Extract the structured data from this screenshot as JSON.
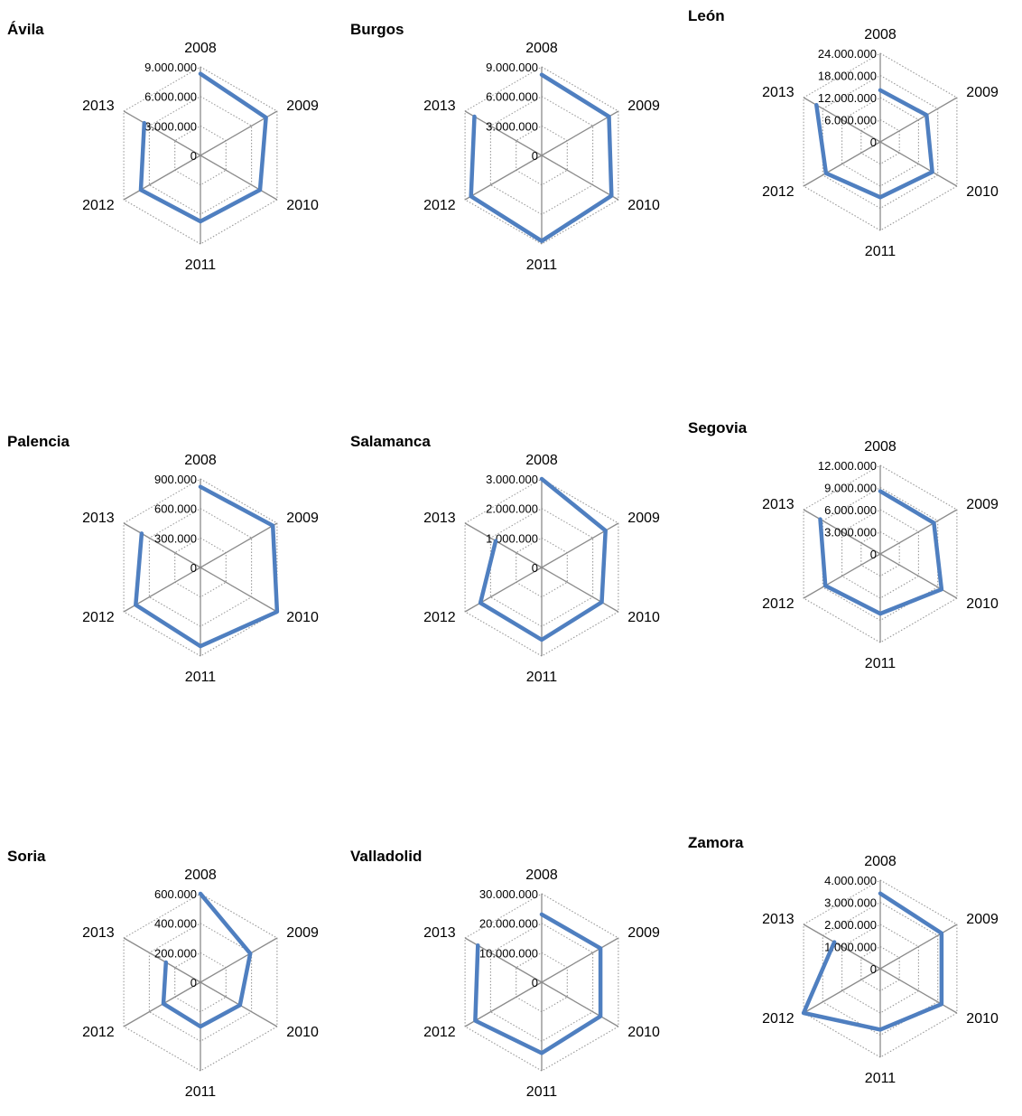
{
  "chart_data": [
    {
      "type": "radar",
      "title": "Ávila",
      "categories": [
        "2008",
        "2009",
        "2010",
        "2011",
        "2012",
        "2013"
      ],
      "values": [
        8300000,
        7700000,
        7000000,
        6700000,
        7000000,
        6600000
      ],
      "ticks": [
        0,
        3000000,
        6000000,
        9000000
      ],
      "tick_labels": [
        "0",
        "3.000.000",
        "6.000.000",
        "9.000.000"
      ],
      "ylim": [
        0,
        9000000
      ]
    },
    {
      "type": "radar",
      "title": "Burgos",
      "categories": [
        "2008",
        "2009",
        "2010",
        "2011",
        "2012",
        "2013"
      ],
      "values": [
        8200000,
        7900000,
        8200000,
        8700000,
        8300000,
        7900000
      ],
      "ticks": [
        0,
        3000000,
        6000000,
        9000000
      ],
      "tick_labels": [
        "0",
        "3.000.000",
        "6.000.000",
        "9.000.000"
      ],
      "ylim": [
        0,
        9000000
      ]
    },
    {
      "type": "radar",
      "title": "León",
      "categories": [
        "2008",
        "2009",
        "2010",
        "2011",
        "2012",
        "2013"
      ],
      "values": [
        14000000,
        14500000,
        16300000,
        15000000,
        17000000,
        20000000
      ],
      "ticks": [
        0,
        6000000,
        12000000,
        18000000,
        24000000
      ],
      "tick_labels": [
        "0",
        "6.000.000",
        "12.000.000",
        "18.000.000",
        "24.000.000"
      ],
      "ylim": [
        0,
        24000000
      ]
    },
    {
      "type": "radar",
      "title": "Palencia",
      "categories": [
        "2008",
        "2009",
        "2010",
        "2011",
        "2012",
        "2013"
      ],
      "values": [
        820000,
        850000,
        900000,
        800000,
        760000,
        690000
      ],
      "ticks": [
        0,
        300000,
        600000,
        900000
      ],
      "tick_labels": [
        "0",
        "300.000",
        "600.000",
        "900.000"
      ],
      "ylim": [
        0,
        900000
      ]
    },
    {
      "type": "radar",
      "title": "Salamanca",
      "categories": [
        "2008",
        "2009",
        "2010",
        "2011",
        "2012",
        "2013"
      ],
      "values": [
        3000000,
        2500000,
        2350000,
        2450000,
        2400000,
        1800000
      ],
      "ticks": [
        0,
        1000000,
        2000000,
        3000000
      ],
      "tick_labels": [
        "0",
        "1.000.000",
        "2.000.000",
        "3.000.000"
      ],
      "ylim": [
        0,
        3000000
      ]
    },
    {
      "type": "radar",
      "title": "Segovia",
      "categories": [
        "2008",
        "2009",
        "2010",
        "2011",
        "2012",
        "2013"
      ],
      "values": [
        8500000,
        8400000,
        9600000,
        8100000,
        8600000,
        9400000
      ],
      "ticks": [
        0,
        3000000,
        6000000,
        9000000,
        12000000
      ],
      "tick_labels": [
        "0",
        "3.000.000",
        "6.000.000",
        "9.000.000",
        "12.000.000"
      ],
      "ylim": [
        0,
        12000000
      ]
    },
    {
      "type": "radar",
      "title": "Soria",
      "categories": [
        "2008",
        "2009",
        "2010",
        "2011",
        "2012",
        "2013"
      ],
      "values": [
        600000,
        390000,
        310000,
        300000,
        290000,
        270000
      ],
      "ticks": [
        0,
        200000,
        400000,
        600000
      ],
      "tick_labels": [
        "0",
        "200.000",
        "400.000",
        "600.000"
      ],
      "ylim": [
        0,
        600000
      ]
    },
    {
      "type": "radar",
      "title": "Valladolid",
      "categories": [
        "2008",
        "2009",
        "2010",
        "2011",
        "2012",
        "2013"
      ],
      "values": [
        23000000,
        23000000,
        23000000,
        24000000,
        26000000,
        25000000
      ],
      "ticks": [
        0,
        10000000,
        20000000,
        30000000
      ],
      "tick_labels": [
        "0",
        "10.000.000",
        "20.000.000",
        "30.000.000"
      ],
      "ylim": [
        0,
        30000000
      ]
    },
    {
      "type": "radar",
      "title": "Zamora",
      "categories": [
        "2008",
        "2009",
        "2010",
        "2011",
        "2012",
        "2013"
      ],
      "values": [
        3400000,
        3200000,
        3200000,
        2750000,
        4000000,
        2400000
      ],
      "ticks": [
        0,
        1000000,
        2000000,
        3000000,
        4000000
      ],
      "tick_labels": [
        "0",
        "1.000.000",
        "2.000.000",
        "3.000.000",
        "4.000.000"
      ],
      "ylim": [
        0,
        4000000
      ]
    }
  ]
}
